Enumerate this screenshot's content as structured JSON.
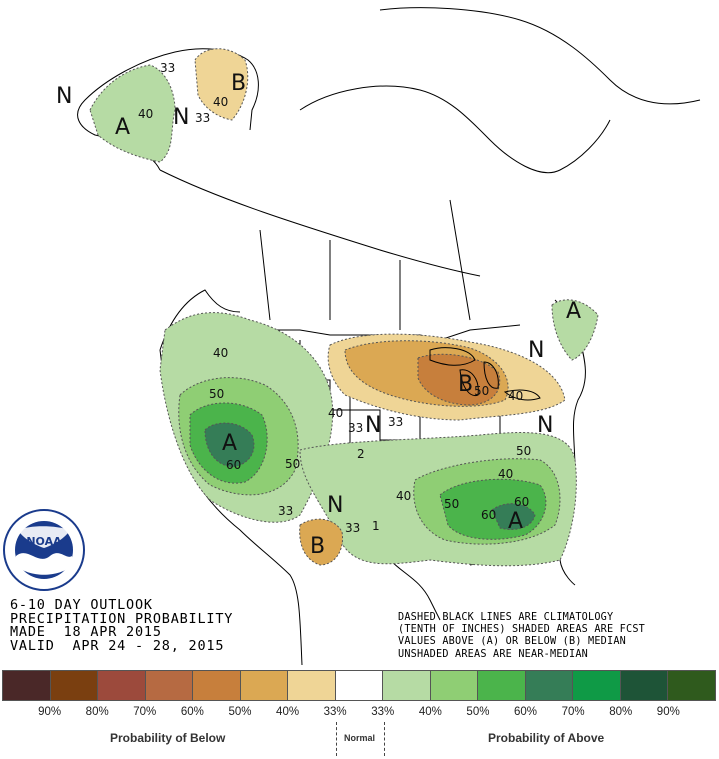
{
  "map": {
    "letters": {
      "ak_n_west": "N",
      "ak_a": "A",
      "ak_n_mid": "N",
      "ak_b": "B",
      "west_a": "A",
      "glakes_b": "B",
      "ne_a": "A",
      "ne_n": "N",
      "mid_n": "N",
      "east_n": "N",
      "se_a": "A",
      "sw_n": "N",
      "sw_b": "B"
    },
    "contours": {
      "ak_33": "33",
      "ak_40": "40",
      "akb_40": "40",
      "akb_33": "33",
      "w_40": "40",
      "w_50": "50",
      "w_60": "60",
      "w_50b": "50",
      "w_40b": "40",
      "w_33": "33",
      "c_2": "2",
      "c_40": "40",
      "se_50": "50",
      "se_60": "60",
      "se_60b": "60",
      "se_50b": "50",
      "se_40": "40",
      "gl_50": "50",
      "gl_40": "40",
      "gl_33": "33",
      "sw_33a": "33",
      "sw_33b": "33",
      "c_1": "1"
    }
  },
  "outlook": {
    "line1": "6-10 DAY OUTLOOK",
    "line2": "PRECIPITATION PROBABILITY",
    "line3": "MADE  18 APR 2015",
    "line4": "VALID  APR 24 - 28, 2015"
  },
  "notes": {
    "line1": "DASHED BLACK LINES ARE CLIMATOLOGY",
    "line2": "(TENTH OF INCHES) SHADED AREAS ARE FCST",
    "line3": "VALUES ABOVE (A) OR BELOW (B) MEDIAN",
    "line4": "UNSHADED AREAS ARE NEAR-MEDIAN"
  },
  "legend": {
    "colors": [
      "#4a2828",
      "#7a3f10",
      "#9c4a3c",
      "#b66a42",
      "#c77f3c",
      "#dba853",
      "#efd596",
      "#ffffff",
      "#b6dba4",
      "#8fce74",
      "#4bb44b",
      "#357d57",
      "#0f9a46",
      "#1e5437",
      "#2f5a1d"
    ],
    "labels": [
      "90%",
      "80%",
      "70%",
      "60%",
      "50%",
      "40%",
      "33%",
      "33%",
      "40%",
      "50%",
      "60%",
      "70%",
      "80%",
      "90%"
    ],
    "below_caption": "Probability of Below",
    "normal_caption": "Normal",
    "above_caption": "Probability of Above"
  },
  "logo": {
    "text": "NOAA",
    "ring_text": "NATIONAL OCEANIC AND ATMOSPHERIC ADMINISTRATION · U.S. DEPARTMENT OF COMMERCE"
  }
}
